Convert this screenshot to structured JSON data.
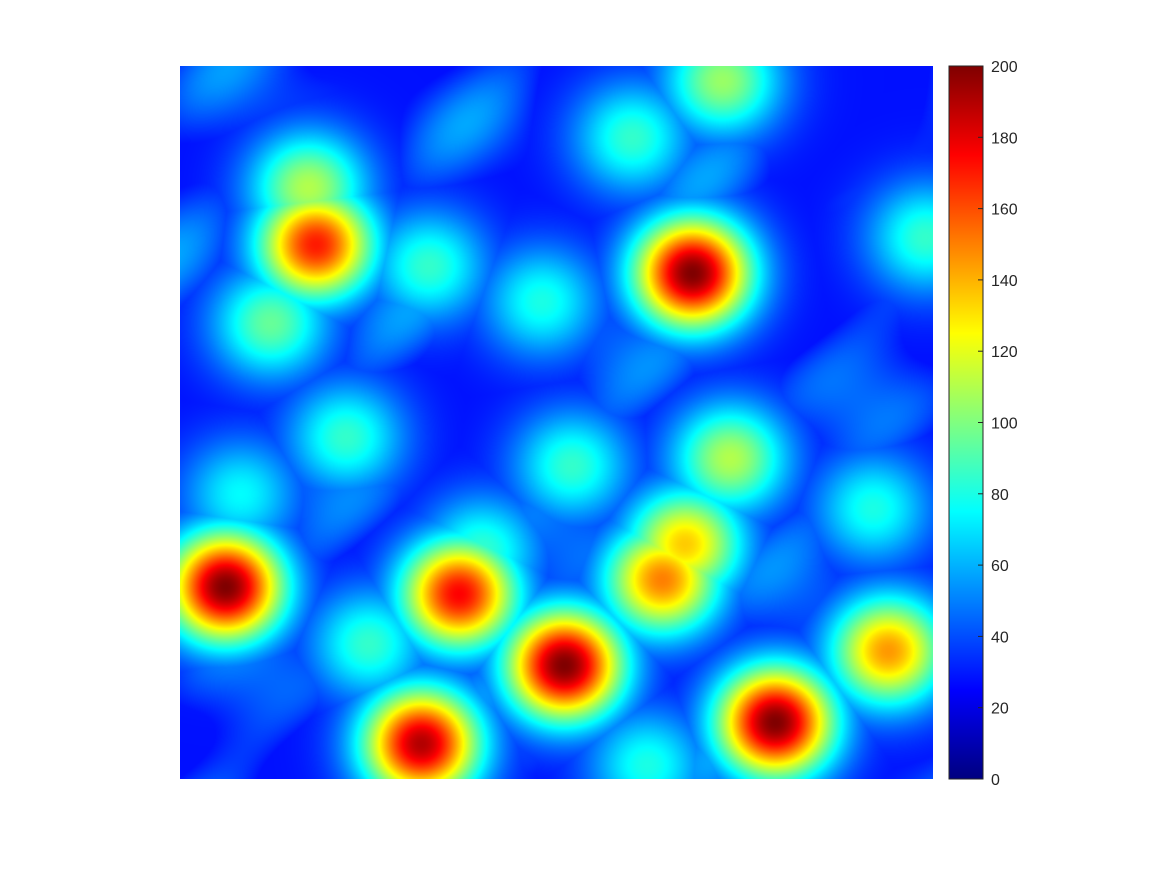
{
  "chart_data": {
    "type": "heatmap",
    "title": "",
    "xlabel": "",
    "ylabel": "",
    "colormap": "jet",
    "color_range": [
      0,
      200
    ],
    "colorbar": {
      "placement": "right",
      "ticks": [
        0,
        20,
        40,
        60,
        80,
        100,
        120,
        140,
        160,
        180,
        200
      ],
      "tick_labels": [
        "0",
        "20",
        "40",
        "60",
        "80",
        "100",
        "120",
        "140",
        "160",
        "180",
        "200"
      ]
    },
    "axes_visible": false,
    "grid": false,
    "background_value": 28,
    "grid_resolution": [
      24,
      24
    ],
    "field_note": "smoothed 2D field, peaks listed with approximate centers in relative plot units (0-1 from left, 0-1 from top)",
    "peaks": [
      {
        "cx": 0.18,
        "cy": 0.25,
        "value": 170
      },
      {
        "cx": 0.17,
        "cy": 0.17,
        "value": 110
      },
      {
        "cx": 0.68,
        "cy": 0.29,
        "value": 200
      },
      {
        "cx": 0.06,
        "cy": 0.73,
        "value": 200
      },
      {
        "cx": 0.37,
        "cy": 0.74,
        "value": 175
      },
      {
        "cx": 0.51,
        "cy": 0.84,
        "value": 200
      },
      {
        "cx": 0.64,
        "cy": 0.72,
        "value": 150
      },
      {
        "cx": 0.67,
        "cy": 0.67,
        "value": 135
      },
      {
        "cx": 0.32,
        "cy": 0.95,
        "value": 190
      },
      {
        "cx": 0.79,
        "cy": 0.92,
        "value": 200
      },
      {
        "cx": 0.94,
        "cy": 0.82,
        "value": 145
      },
      {
        "cx": 0.73,
        "cy": 0.55,
        "value": 110
      },
      {
        "cx": 0.72,
        "cy": 0.02,
        "value": 105
      },
      {
        "cx": 0.6,
        "cy": 0.1,
        "value": 85
      },
      {
        "cx": 0.33,
        "cy": 0.28,
        "value": 85
      },
      {
        "cx": 0.48,
        "cy": 0.33,
        "value": 80
      },
      {
        "cx": 0.12,
        "cy": 0.36,
        "value": 95
      },
      {
        "cx": 0.22,
        "cy": 0.52,
        "value": 85
      },
      {
        "cx": 0.52,
        "cy": 0.56,
        "value": 85
      },
      {
        "cx": 0.4,
        "cy": 0.68,
        "value": 85
      },
      {
        "cx": 0.25,
        "cy": 0.81,
        "value": 85
      },
      {
        "cx": 0.92,
        "cy": 0.62,
        "value": 80
      },
      {
        "cx": 0.99,
        "cy": 0.24,
        "value": 85
      },
      {
        "cx": 0.62,
        "cy": 0.98,
        "value": 80
      },
      {
        "cx": 0.08,
        "cy": 0.6,
        "value": 75
      }
    ]
  }
}
